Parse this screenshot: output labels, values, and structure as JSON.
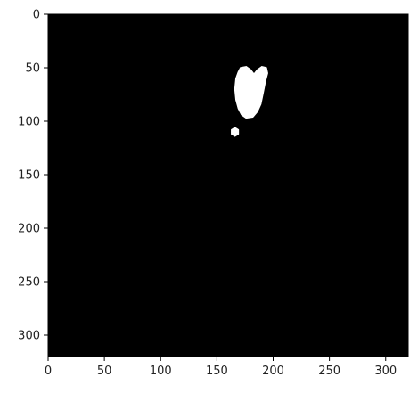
{
  "chart_data": {
    "type": "heatmap",
    "title": "",
    "xlabel": "",
    "ylabel": "",
    "xlim": [
      0,
      320
    ],
    "ylim": [
      320,
      0
    ],
    "x_ticks": [
      0,
      50,
      100,
      150,
      200,
      250,
      300
    ],
    "y_ticks": [
      0,
      50,
      100,
      150,
      200,
      250,
      300
    ],
    "colormap": {
      "0": "#000000",
      "1": "#ffffff"
    },
    "background_value": 0,
    "mask_regions": [
      {
        "name": "main-blob",
        "value": 1,
        "outline": [
          [
            171,
            50
          ],
          [
            176,
            49
          ],
          [
            180,
            52
          ],
          [
            183,
            56
          ],
          [
            186,
            52
          ],
          [
            190,
            49
          ],
          [
            194,
            50
          ],
          [
            195,
            55
          ],
          [
            193,
            63
          ],
          [
            191,
            74
          ],
          [
            189,
            84
          ],
          [
            186,
            91
          ],
          [
            182,
            96
          ],
          [
            176,
            97
          ],
          [
            172,
            94
          ],
          [
            169,
            88
          ],
          [
            167,
            80
          ],
          [
            166,
            70
          ],
          [
            167,
            60
          ],
          [
            169,
            54
          ]
        ]
      },
      {
        "name": "small-blob",
        "value": 1,
        "outline": [
          [
            163,
            108
          ],
          [
            166,
            106
          ],
          [
            169,
            108
          ],
          [
            169,
            112
          ],
          [
            166,
            114
          ],
          [
            163,
            112
          ]
        ]
      }
    ],
    "grid": false,
    "legend": "none"
  }
}
